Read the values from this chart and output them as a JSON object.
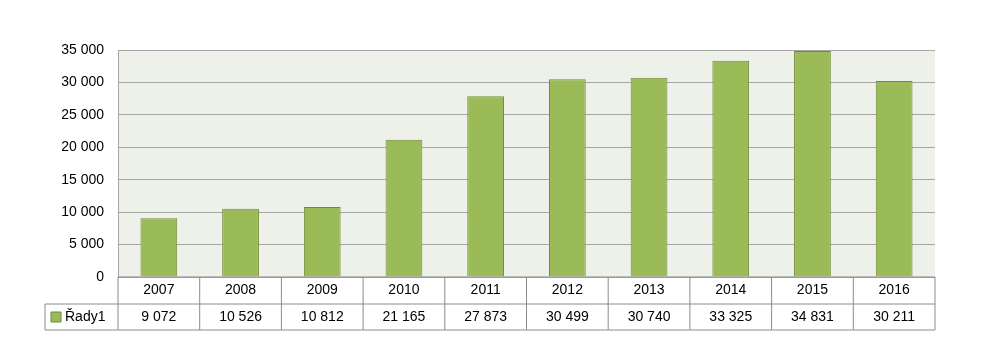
{
  "chart_data": {
    "type": "bar",
    "categories": [
      "2007",
      "2008",
      "2009",
      "2010",
      "2011",
      "2012",
      "2013",
      "2014",
      "2015",
      "2016"
    ],
    "series": [
      {
        "name": "Řady1",
        "color": "#9bbb59",
        "values": [
          9072,
          10526,
          10812,
          21165,
          27873,
          30499,
          30740,
          33325,
          34831,
          30211
        ],
        "value_labels": [
          "9 072",
          "10 526",
          "10 812",
          "21 165",
          "27 873",
          "30 499",
          "30 740",
          "33 325",
          "34 831",
          "30 211"
        ]
      }
    ],
    "ylim": [
      0,
      35000
    ],
    "yticks": [
      {
        "value": 0,
        "label": "0"
      },
      {
        "value": 5000,
        "label": "5 000"
      },
      {
        "value": 10000,
        "label": "10 000"
      },
      {
        "value": 15000,
        "label": "15 000"
      },
      {
        "value": 20000,
        "label": "20 000"
      },
      {
        "value": 25000,
        "label": "25 000"
      },
      {
        "value": 30000,
        "label": "30 000"
      },
      {
        "value": 35000,
        "label": "35 000"
      }
    ],
    "grid": "y"
  }
}
